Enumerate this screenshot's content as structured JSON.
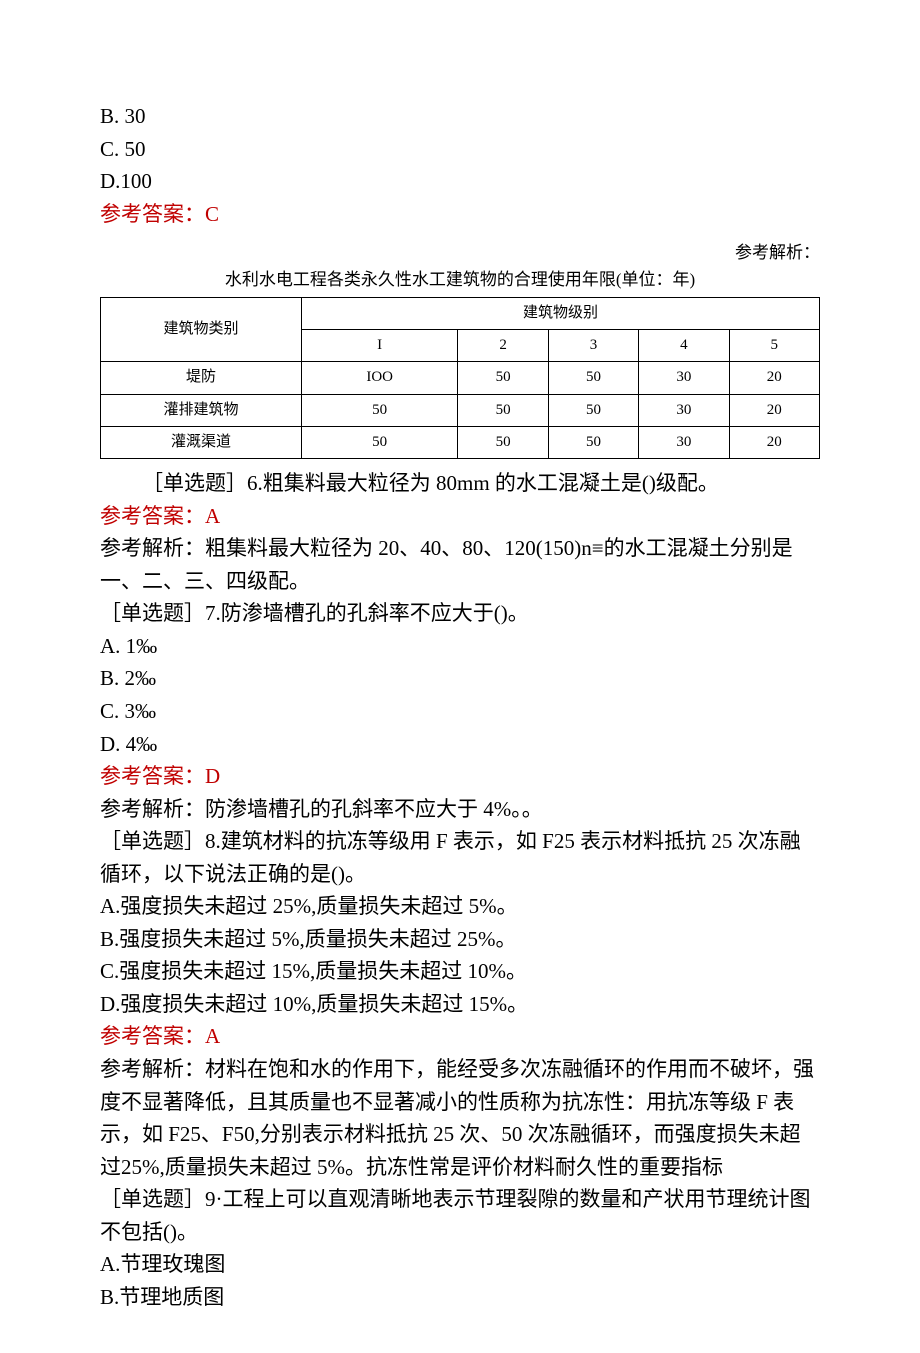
{
  "q5_options": {
    "b": "B. 30",
    "c": "C. 50",
    "d": "D.100"
  },
  "q5_answer": "参考答案：C",
  "q5_analysis_label": "参考解析：",
  "table_title": "水利水电工程各类永久性水工建筑物的合理使用年限(单位：年)",
  "table": {
    "header_category": "建筑物类别",
    "header_level": "建筑物级别",
    "levels": [
      "I",
      "2",
      "3",
      "4",
      "5"
    ],
    "rows": [
      {
        "name": "堤防",
        "values": [
          "IOO",
          "50",
          "50",
          "30",
          "20"
        ]
      },
      {
        "name": "灌排建筑物",
        "values": [
          "50",
          "50",
          "50",
          "30",
          "20"
        ]
      },
      {
        "name": "灌溉渠道",
        "values": [
          "50",
          "50",
          "50",
          "30",
          "20"
        ]
      }
    ]
  },
  "q6": {
    "question": "［单选题］6.粗集料最大粒径为 80mm 的水工混凝土是()级配。",
    "answer": "参考答案：A",
    "analysis": "参考解析：粗集料最大粒径为 20、40、80、120(150)n≡的水工混凝土分别是一、二、三、四级配。"
  },
  "q7": {
    "question": "［单选题］7.防渗墙槽孔的孔斜率不应大于()。",
    "opts": {
      "a": "A. 1‰",
      "b": "B. 2‰",
      "c": "C. 3‰",
      "d": "D. 4‰"
    },
    "answer": "参考答案：D",
    "analysis": "参考解析：防渗墙槽孔的孔斜率不应大于 4%。。"
  },
  "q8": {
    "question": "［单选题］8.建筑材料的抗冻等级用 F 表示，如 F25 表示材料抵抗 25 次冻融循环，以下说法正确的是()。",
    "opts": {
      "a": "A.强度损失未超过 25%,质量损失未超过 5%。",
      "b": "B.强度损失未超过 5%,质量损失未超过 25%。",
      "c": "C.强度损失未超过 15%,质量损失未超过 10%。",
      "d": "D.强度损失未超过 10%,质量损失未超过 15%。"
    },
    "answer": "参考答案：A",
    "analysis": "参考解析：材料在饱和水的作用下，能经受多次冻融循环的作用而不破坏，强度不显著降低，且其质量也不显著减小的性质称为抗冻性：用抗冻等级 F 表示，如 F25、F50,分别表示材料抵抗 25 次、50 次冻融循环，而强度损失未超过25%,质量损失未超过 5%。抗冻性常是评价材料耐久性的重要指标"
  },
  "q9": {
    "question": "［单选题］9·工程上可以直观清晰地表示节理裂隙的数量和产状用节理统计图不包括()。",
    "opts": {
      "a": "A.节理玫瑰图",
      "b": "B.节理地质图"
    }
  }
}
